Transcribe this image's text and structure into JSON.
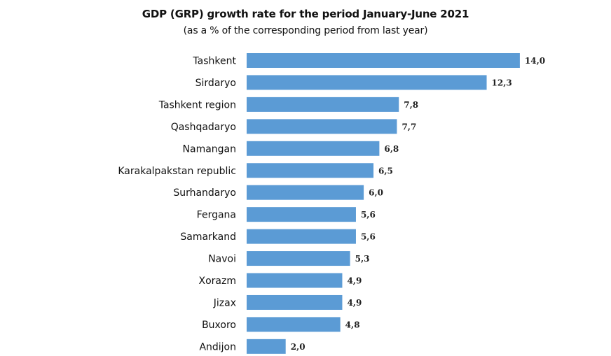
{
  "chart_data": {
    "type": "bar",
    "orientation": "horizontal",
    "title": "GDP (GRP) growth rate  for the period January-June 2021",
    "subtitle": "(as a % of the corresponding period from last year)",
    "categories": [
      "Tashkent",
      "Sirdaryo",
      "Tashkent region",
      "Qashqadaryo",
      "Namangan",
      "Karakalpakstan republic",
      "Surhandaryo",
      "Fergana",
      "Samarkand",
      "Navoi",
      "Xorazm",
      "Jizax",
      "Buxoro",
      "Andijon"
    ],
    "values": [
      14.0,
      12.3,
      7.8,
      7.7,
      6.8,
      6.5,
      6.0,
      5.6,
      5.6,
      5.3,
      4.9,
      4.9,
      4.8,
      2.0
    ],
    "value_labels": [
      "14,0",
      "12,3",
      "7,8",
      "7,7",
      "6,8",
      "6,5",
      "6,0",
      "5,6",
      "5,6",
      "5,3",
      "4,9",
      "4,9",
      "4,8",
      "2,0"
    ],
    "xlim": [
      0,
      14
    ],
    "grid": false,
    "legend": "none",
    "bar_color": "#5b9bd5"
  }
}
